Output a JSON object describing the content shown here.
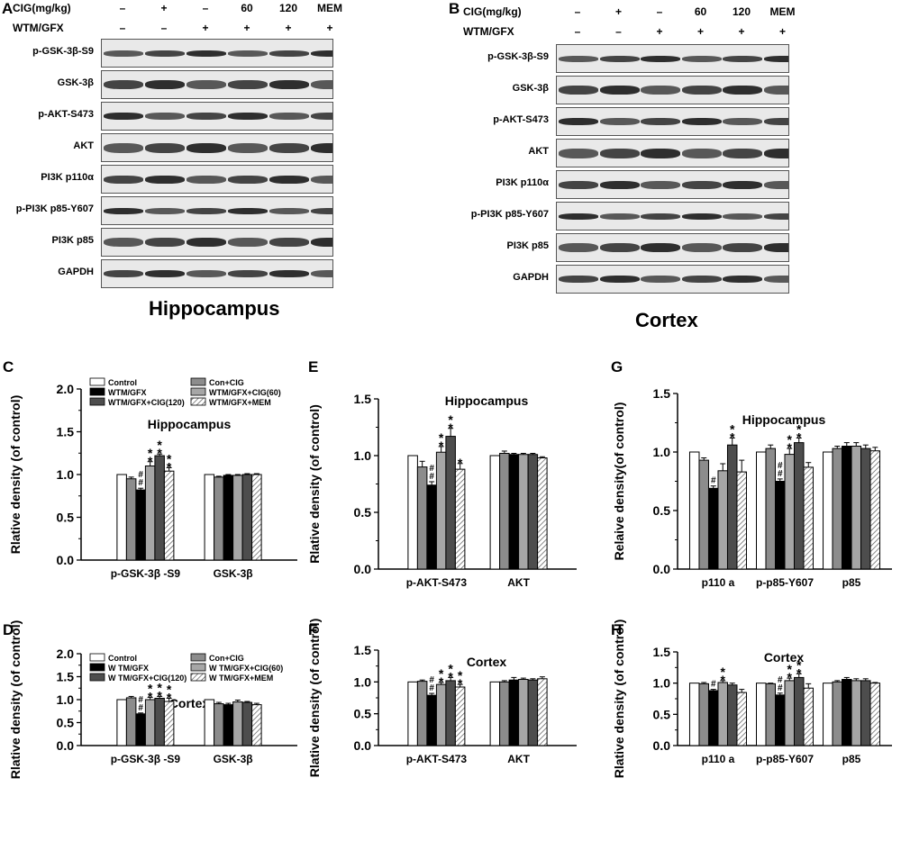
{
  "panels": {
    "A": "A",
    "B": "B",
    "C": "C",
    "D": "D",
    "E": "E",
    "F": "F",
    "G": "G",
    "H": "H"
  },
  "blot_header": {
    "cig_label": "CIG(mg/kg)",
    "wtm_label": "WTM/GFX",
    "cig_values": [
      "–",
      "+",
      "–",
      "60",
      "120",
      "MEM"
    ],
    "wtm_values": [
      "–",
      "–",
      "+",
      "+",
      "+",
      "+"
    ]
  },
  "blots": {
    "hippocampus": {
      "title": "Hippocampus",
      "rows": [
        "p-GSK-3β-S9",
        "GSK-3β",
        "p-AKT-S473",
        "AKT",
        "PI3K p110α",
        "p-PI3K p85-Y607",
        "PI3K p85",
        "GAPDH"
      ]
    },
    "cortex": {
      "title": "Cortex",
      "rows": [
        "p-GSK-3β-S9",
        "GSK-3β",
        "p-AKT-S473",
        "AKT",
        "PI3K p110α",
        "p-PI3K p85-Y607",
        "PI3K p85",
        "GAPDH"
      ]
    }
  },
  "legend": {
    "items": [
      "Control",
      "Con+CIG",
      "WTM/GFX",
      "WTM/GFX+CIG(60)",
      "WTM/GFX+CIG(120)",
      "WTM/GFX+MEM"
    ],
    "d_items": [
      "Control",
      "Con+CIG",
      "W TM/GFX",
      "W TM/GFX+CIG(60)",
      "W TM/GFX+CIG(120)",
      "W TM/GFX+MEM"
    ]
  },
  "chart_data": [
    {
      "id": "C",
      "type": "bar",
      "title": "Hippocampus",
      "ylabel": "Rlative density (of control)",
      "ylim": [
        0,
        2.0
      ],
      "yticks": [
        "0.0",
        "0.5",
        "1.0",
        "1.5",
        "2.0"
      ],
      "categories": [
        "p-GSK-3β  -S9",
        "GSK-3β"
      ],
      "series": [
        {
          "name": "Control",
          "values": [
            1.0,
            1.0
          ],
          "errors": [
            0.0,
            0.0
          ]
        },
        {
          "name": "Con+CIG",
          "values": [
            0.95,
            0.97
          ],
          "errors": [
            0.02,
            0.01
          ]
        },
        {
          "name": "WTM/GFX",
          "values": [
            0.82,
            0.99
          ],
          "errors": [
            0.02,
            0.01
          ]
        },
        {
          "name": "WTM/GFX+CIG(60)",
          "values": [
            1.1,
            0.99
          ],
          "errors": [
            0.05,
            0.01
          ]
        },
        {
          "name": "WTM/GFX+CIG(120)",
          "values": [
            1.22,
            1.0
          ],
          "errors": [
            0.02,
            0.01
          ]
        },
        {
          "name": "WTM/GFX+MEM",
          "values": [
            1.04,
            1.0
          ],
          "errors": [
            0.04,
            0.01
          ]
        }
      ],
      "annotations": [
        {
          "group": 0,
          "bar": 2,
          "text": "##"
        },
        {
          "group": 0,
          "bar": 3,
          "text": "**"
        },
        {
          "group": 0,
          "bar": 4,
          "text": "**"
        },
        {
          "group": 0,
          "bar": 5,
          "text": "**"
        }
      ]
    },
    {
      "id": "D",
      "type": "bar",
      "title": "Cortex",
      "ylabel": "Rlative density (of control)",
      "ylim": [
        0,
        2.0
      ],
      "yticks": [
        "0.0",
        "0.5",
        "1.0",
        "1.5",
        "2.0"
      ],
      "categories": [
        "p-GSK-3β  -S9",
        "GSK-3β"
      ],
      "series": [
        {
          "name": "Control",
          "values": [
            1.0,
            1.0
          ],
          "errors": [
            0.0,
            0.0
          ]
        },
        {
          "name": "Con+CIG",
          "values": [
            1.04,
            0.91
          ],
          "errors": [
            0.03,
            0.03
          ]
        },
        {
          "name": "W TM/GFX",
          "values": [
            0.69,
            0.89
          ],
          "errors": [
            0.02,
            0.03
          ]
        },
        {
          "name": "W TM/GFX+CIG(60)",
          "values": [
            1.0,
            0.95
          ],
          "errors": [
            0.05,
            0.04
          ]
        },
        {
          "name": "W TM/GFX+CIG(120)",
          "values": [
            1.03,
            0.94
          ],
          "errors": [
            0.04,
            0.02
          ]
        },
        {
          "name": "W TM/GFX+MEM",
          "values": [
            0.96,
            0.89
          ],
          "errors": [
            0.07,
            0.03
          ]
        }
      ],
      "annotations": [
        {
          "group": 0,
          "bar": 2,
          "text": "##"
        },
        {
          "group": 0,
          "bar": 3,
          "text": "**"
        },
        {
          "group": 0,
          "bar": 4,
          "text": "**"
        },
        {
          "group": 0,
          "bar": 5,
          "text": "**"
        }
      ]
    },
    {
      "id": "E",
      "type": "bar",
      "title": "Hippocampus",
      "ylabel": "Rlative density (of control)",
      "ylim": [
        0,
        1.5
      ],
      "yticks": [
        "0.0",
        "0.5",
        "1.0",
        "1.5"
      ],
      "categories": [
        "p-AKT-S473",
        "AKT"
      ],
      "series": [
        {
          "values": [
            1.0,
            1.0
          ],
          "errors": [
            0.0,
            0.0
          ]
        },
        {
          "values": [
            0.9,
            1.02
          ],
          "errors": [
            0.05,
            0.02
          ]
        },
        {
          "values": [
            0.74,
            1.01
          ],
          "errors": [
            0.03,
            0.01
          ]
        },
        {
          "values": [
            1.03,
            1.01
          ],
          "errors": [
            0.05,
            0.01
          ]
        },
        {
          "values": [
            1.17,
            1.01
          ],
          "errors": [
            0.07,
            0.01
          ]
        },
        {
          "values": [
            0.88,
            0.98
          ],
          "errors": [
            0.05,
            0.01
          ]
        }
      ],
      "annotations": [
        {
          "group": 0,
          "bar": 2,
          "text": "##"
        },
        {
          "group": 0,
          "bar": 3,
          "text": "**"
        },
        {
          "group": 0,
          "bar": 4,
          "text": "**"
        },
        {
          "group": 0,
          "bar": 5,
          "text": "*"
        }
      ]
    },
    {
      "id": "F",
      "type": "bar",
      "title": "Cortex",
      "ylabel": "Rlative density (of control)",
      "ylim": [
        0,
        1.5
      ],
      "yticks": [
        "0.0",
        "0.5",
        "1.0",
        "1.5"
      ],
      "categories": [
        "p-AKT-S473",
        "AKT"
      ],
      "series": [
        {
          "values": [
            1.0,
            1.0
          ],
          "errors": [
            0.0,
            0.0
          ]
        },
        {
          "values": [
            1.01,
            1.0
          ],
          "errors": [
            0.02,
            0.02
          ]
        },
        {
          "values": [
            0.79,
            1.03
          ],
          "errors": [
            0.03,
            0.04
          ]
        },
        {
          "values": [
            0.96,
            1.04
          ],
          "errors": [
            0.03,
            0.02
          ]
        },
        {
          "values": [
            1.02,
            1.03
          ],
          "errors": [
            0.05,
            0.02
          ]
        },
        {
          "values": [
            0.92,
            1.05
          ],
          "errors": [
            0.04,
            0.03
          ]
        }
      ],
      "annotations": [
        {
          "group": 0,
          "bar": 2,
          "text": "##"
        },
        {
          "group": 0,
          "bar": 3,
          "text": "**"
        },
        {
          "group": 0,
          "bar": 4,
          "text": "**"
        },
        {
          "group": 0,
          "bar": 5,
          "text": "**"
        }
      ]
    },
    {
      "id": "G",
      "type": "bar",
      "title": "Hippocampus",
      "ylabel": "Relaive density(of control)",
      "ylim": [
        0,
        1.5
      ],
      "yticks": [
        "0.0",
        "0.5",
        "1.0",
        "1.5"
      ],
      "categories": [
        "p110 a",
        "p-p85-Y607",
        "p85"
      ],
      "series": [
        {
          "values": [
            1.0,
            1.0,
            1.0
          ],
          "errors": [
            0.0,
            0.0,
            0.0
          ]
        },
        {
          "values": [
            0.93,
            1.03,
            1.03
          ],
          "errors": [
            0.02,
            0.03,
            0.02
          ]
        },
        {
          "values": [
            0.69,
            0.75,
            1.05
          ],
          "errors": [
            0.02,
            0.02,
            0.03
          ]
        },
        {
          "values": [
            0.84,
            0.98,
            1.05
          ],
          "errors": [
            0.06,
            0.05,
            0.03
          ]
        },
        {
          "values": [
            1.06,
            1.08,
            1.03
          ],
          "errors": [
            0.06,
            0.04,
            0.03
          ]
        },
        {
          "values": [
            0.83,
            0.87,
            1.01
          ],
          "errors": [
            0.1,
            0.04,
            0.03
          ]
        }
      ],
      "annotations": [
        {
          "group": 0,
          "bar": 2,
          "text": "#"
        },
        {
          "group": 0,
          "bar": 4,
          "text": "**"
        },
        {
          "group": 1,
          "bar": 2,
          "text": "##"
        },
        {
          "group": 1,
          "bar": 3,
          "text": "**"
        },
        {
          "group": 1,
          "bar": 4,
          "text": "**"
        }
      ]
    },
    {
      "id": "H",
      "type": "bar",
      "title": "Cortex",
      "ylabel": "Rlative density (of control)",
      "ylim": [
        0,
        1.5
      ],
      "yticks": [
        "0.0",
        "0.5",
        "1.0",
        "1.5"
      ],
      "categories": [
        "p110 a",
        "p-p85-Y607",
        "p85"
      ],
      "series": [
        {
          "values": [
            1.0,
            1.0,
            1.0
          ],
          "errors": [
            0.0,
            0.0,
            0.0
          ]
        },
        {
          "values": [
            0.99,
            0.99,
            1.02
          ],
          "errors": [
            0.02,
            0.01,
            0.02
          ]
        },
        {
          "values": [
            0.88,
            0.81,
            1.06
          ],
          "errors": [
            0.02,
            0.03,
            0.03
          ]
        },
        {
          "values": [
            1.01,
            1.04,
            1.04
          ],
          "errors": [
            0.03,
            0.04,
            0.03
          ]
        },
        {
          "values": [
            0.97,
            1.09,
            1.04
          ],
          "errors": [
            0.03,
            0.06,
            0.03
          ]
        },
        {
          "values": [
            0.85,
            0.92,
            1.0
          ],
          "errors": [
            0.05,
            0.07,
            0.01
          ]
        }
      ],
      "annotations": [
        {
          "group": 0,
          "bar": 2,
          "text": "#"
        },
        {
          "group": 0,
          "bar": 3,
          "text": "**"
        },
        {
          "group": 1,
          "bar": 2,
          "text": "##"
        },
        {
          "group": 1,
          "bar": 3,
          "text": "**"
        },
        {
          "group": 1,
          "bar": 4,
          "text": "**"
        }
      ]
    }
  ],
  "colors": {
    "control": "#ffffff",
    "con_cig": "#8c8c8c",
    "wtm_gfx": "#000000",
    "cig60": "#a6a6a6",
    "cig120": "#4d4d4d",
    "mem": "hatched"
  }
}
